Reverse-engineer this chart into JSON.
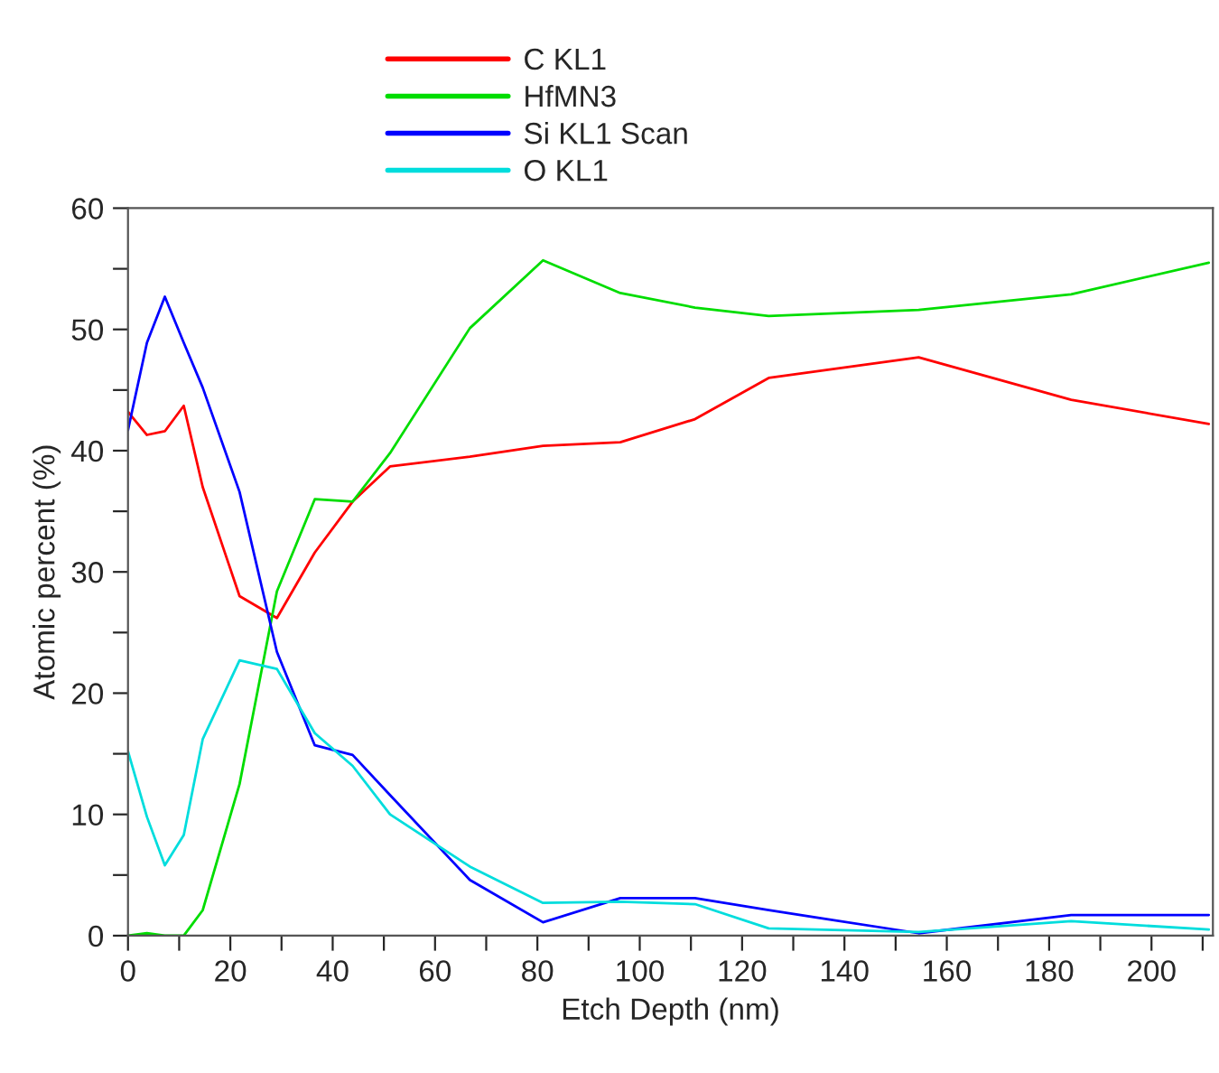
{
  "chart_data": {
    "type": "line",
    "xlabel": "Etch Depth (nm)",
    "ylabel": "Atomic percent (%)",
    "x": [
      0,
      3.7,
      7.2,
      10.9,
      14.6,
      21.8,
      29.1,
      36.5,
      43.9,
      51.2,
      66.8,
      81.1,
      96.2,
      110.8,
      125.2,
      154.5,
      184.3,
      211.2
    ],
    "series": [
      {
        "name": "C KL1",
        "color": "#ff0000",
        "values": [
          43.2,
          41.3,
          41.6,
          43.7,
          37.0,
          28.0,
          26.2,
          31.6,
          35.8,
          38.7,
          39.5,
          40.4,
          40.7,
          42.6,
          46.0,
          47.7,
          44.2,
          42.2
        ]
      },
      {
        "name": "HfMN3",
        "color": "#00dd00",
        "values": [
          0,
          0.2,
          0,
          0,
          2.1,
          12.5,
          28.4,
          36.0,
          35.8,
          39.8,
          50.1,
          55.7,
          53.0,
          51.8,
          51.1,
          51.6,
          52.9,
          55.5
        ]
      },
      {
        "name": "Si KL1 Scan",
        "color": "#0000ff",
        "values": [
          41.7,
          48.9,
          52.7,
          48.9,
          45.2,
          36.6,
          23.4,
          15.7,
          14.9,
          11.6,
          4.6,
          1.1,
          3.1,
          3.1,
          2.1,
          0.2,
          1.7,
          1.7
        ]
      },
      {
        "name": "O KL1",
        "color": "#00dddd",
        "values": [
          15.2,
          9.8,
          5.8,
          8.3,
          16.2,
          22.7,
          22.0,
          16.7,
          14.0,
          10.0,
          5.7,
          2.7,
          2.8,
          2.6,
          0.6,
          0.3,
          1.2,
          0.5
        ]
      }
    ],
    "xlim": [
      0,
      212
    ],
    "ylim": [
      0,
      60
    ],
    "xticks": [
      0,
      {
        "value": 10,
        "label": null
      },
      20,
      {
        "value": 30,
        "label": null
      },
      40,
      {
        "value": 50,
        "label": null
      },
      60,
      {
        "value": 70,
        "label": null
      },
      80,
      {
        "value": 90,
        "label": null
      },
      100,
      {
        "value": 110,
        "label": null
      },
      120,
      {
        "value": 130,
        "label": null
      },
      140,
      {
        "value": 150,
        "label": null
      },
      160,
      {
        "value": 170,
        "label": null
      },
      180,
      {
        "value": 190,
        "label": null
      },
      200,
      {
        "value": 210,
        "label": null
      }
    ],
    "yticks": [
      0,
      {
        "value": 5,
        "label": null
      },
      10,
      {
        "value": 15,
        "label": null
      },
      20,
      {
        "value": 25,
        "label": null
      },
      30,
      {
        "value": 35,
        "label": null
      },
      40,
      {
        "value": 45,
        "label": null
      },
      50,
      {
        "value": 55,
        "label": null
      },
      60
    ],
    "grid": false,
    "legend": "top",
    "marker": "none",
    "line_style": "solid"
  }
}
